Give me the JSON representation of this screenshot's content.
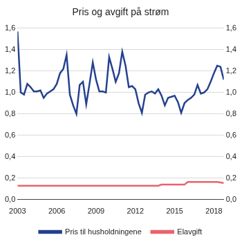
{
  "chart_data": {
    "type": "line",
    "title": "Pris og avgift på strøm",
    "x": [
      2003,
      2003.25,
      2003.5,
      2003.75,
      2004,
      2004.25,
      2004.5,
      2004.75,
      2005,
      2005.25,
      2005.5,
      2005.75,
      2006,
      2006.25,
      2006.5,
      2006.75,
      2007,
      2007.25,
      2007.5,
      2007.75,
      2008,
      2008.25,
      2008.5,
      2008.75,
      2009,
      2009.25,
      2009.5,
      2009.75,
      2010,
      2010.25,
      2010.5,
      2010.75,
      2011,
      2011.25,
      2011.5,
      2011.75,
      2012,
      2012.25,
      2012.5,
      2012.75,
      2013,
      2013.25,
      2013.5,
      2013.75,
      2014,
      2014.25,
      2014.5,
      2014.75,
      2015,
      2015.25,
      2015.5,
      2015.75,
      2016,
      2016.25,
      2016.5,
      2016.75,
      2017,
      2017.25,
      2017.5,
      2017.75,
      2018,
      2018.25,
      2018.5,
      2018.75
    ],
    "series": [
      {
        "name": "Pris til husholdningene",
        "color": "#25418f",
        "values": [
          1.57,
          1.0,
          0.98,
          1.08,
          1.05,
          1.01,
          1.01,
          1.02,
          0.95,
          0.99,
          1.01,
          1.03,
          1.08,
          1.18,
          1.22,
          1.35,
          0.98,
          0.88,
          0.8,
          1.07,
          1.1,
          0.89,
          1.08,
          1.28,
          1.12,
          1.01,
          1.01,
          1.0,
          1.33,
          1.22,
          1.1,
          1.18,
          1.38,
          1.25,
          1.05,
          1.06,
          1.03,
          0.9,
          0.81,
          0.98,
          1.0,
          1.01,
          0.99,
          1.03,
          0.97,
          0.88,
          0.95,
          0.96,
          0.97,
          0.91,
          0.81,
          0.9,
          0.93,
          0.95,
          0.98,
          1.07,
          0.99,
          1.0,
          1.03,
          1.1,
          1.18,
          1.25,
          1.24,
          1.12
        ]
      },
      {
        "name": "Elavgift",
        "color": "#e8636b",
        "values": [
          0.13,
          0.13,
          0.13,
          0.13,
          0.13,
          0.13,
          0.13,
          0.13,
          0.13,
          0.13,
          0.13,
          0.13,
          0.13,
          0.13,
          0.13,
          0.13,
          0.13,
          0.13,
          0.13,
          0.13,
          0.13,
          0.13,
          0.13,
          0.13,
          0.13,
          0.13,
          0.13,
          0.13,
          0.13,
          0.13,
          0.13,
          0.13,
          0.13,
          0.13,
          0.13,
          0.13,
          0.13,
          0.13,
          0.13,
          0.13,
          0.13,
          0.13,
          0.13,
          0.13,
          0.14,
          0.14,
          0.14,
          0.14,
          0.14,
          0.14,
          0.14,
          0.14,
          0.165,
          0.165,
          0.165,
          0.165,
          0.165,
          0.165,
          0.165,
          0.165,
          0.165,
          0.165,
          0.16,
          0.155
        ]
      }
    ],
    "xlim": [
      2003,
      2018.75
    ],
    "xticks": [
      2003,
      2006,
      2009,
      2012,
      2015,
      2018
    ],
    "ylim": [
      0,
      1.6
    ],
    "yticks": [
      {
        "value": 0,
        "label": "0,0"
      },
      {
        "value": 0.2,
        "label": "0,2"
      },
      {
        "value": 0.4,
        "label": "0,4"
      },
      {
        "value": 0.6,
        "label": "0,6"
      },
      {
        "value": 0.8,
        "label": "0,8"
      },
      {
        "value": 1.0,
        "label": "1,0"
      },
      {
        "value": 1.2,
        "label": "1,2"
      },
      {
        "value": 1.4,
        "label": "1,4"
      },
      {
        "value": 1.6,
        "label": "1,6"
      }
    ],
    "y2lim": [
      0,
      1.6
    ],
    "y2ticks": [
      {
        "value": 0,
        "label": "0,0"
      },
      {
        "value": 0.2,
        "label": "0,2"
      },
      {
        "value": 0.4,
        "label": "0,4"
      },
      {
        "value": 0.6,
        "label": "0,6"
      },
      {
        "value": 0.8,
        "label": "0,8"
      },
      {
        "value": 1.0,
        "label": "1,0"
      },
      {
        "value": 1.2,
        "label": "1,2"
      },
      {
        "value": 1.4,
        "label": "1,4"
      },
      {
        "value": 1.6,
        "label": "1,6"
      }
    ],
    "grid": true,
    "legend": "bottom"
  }
}
